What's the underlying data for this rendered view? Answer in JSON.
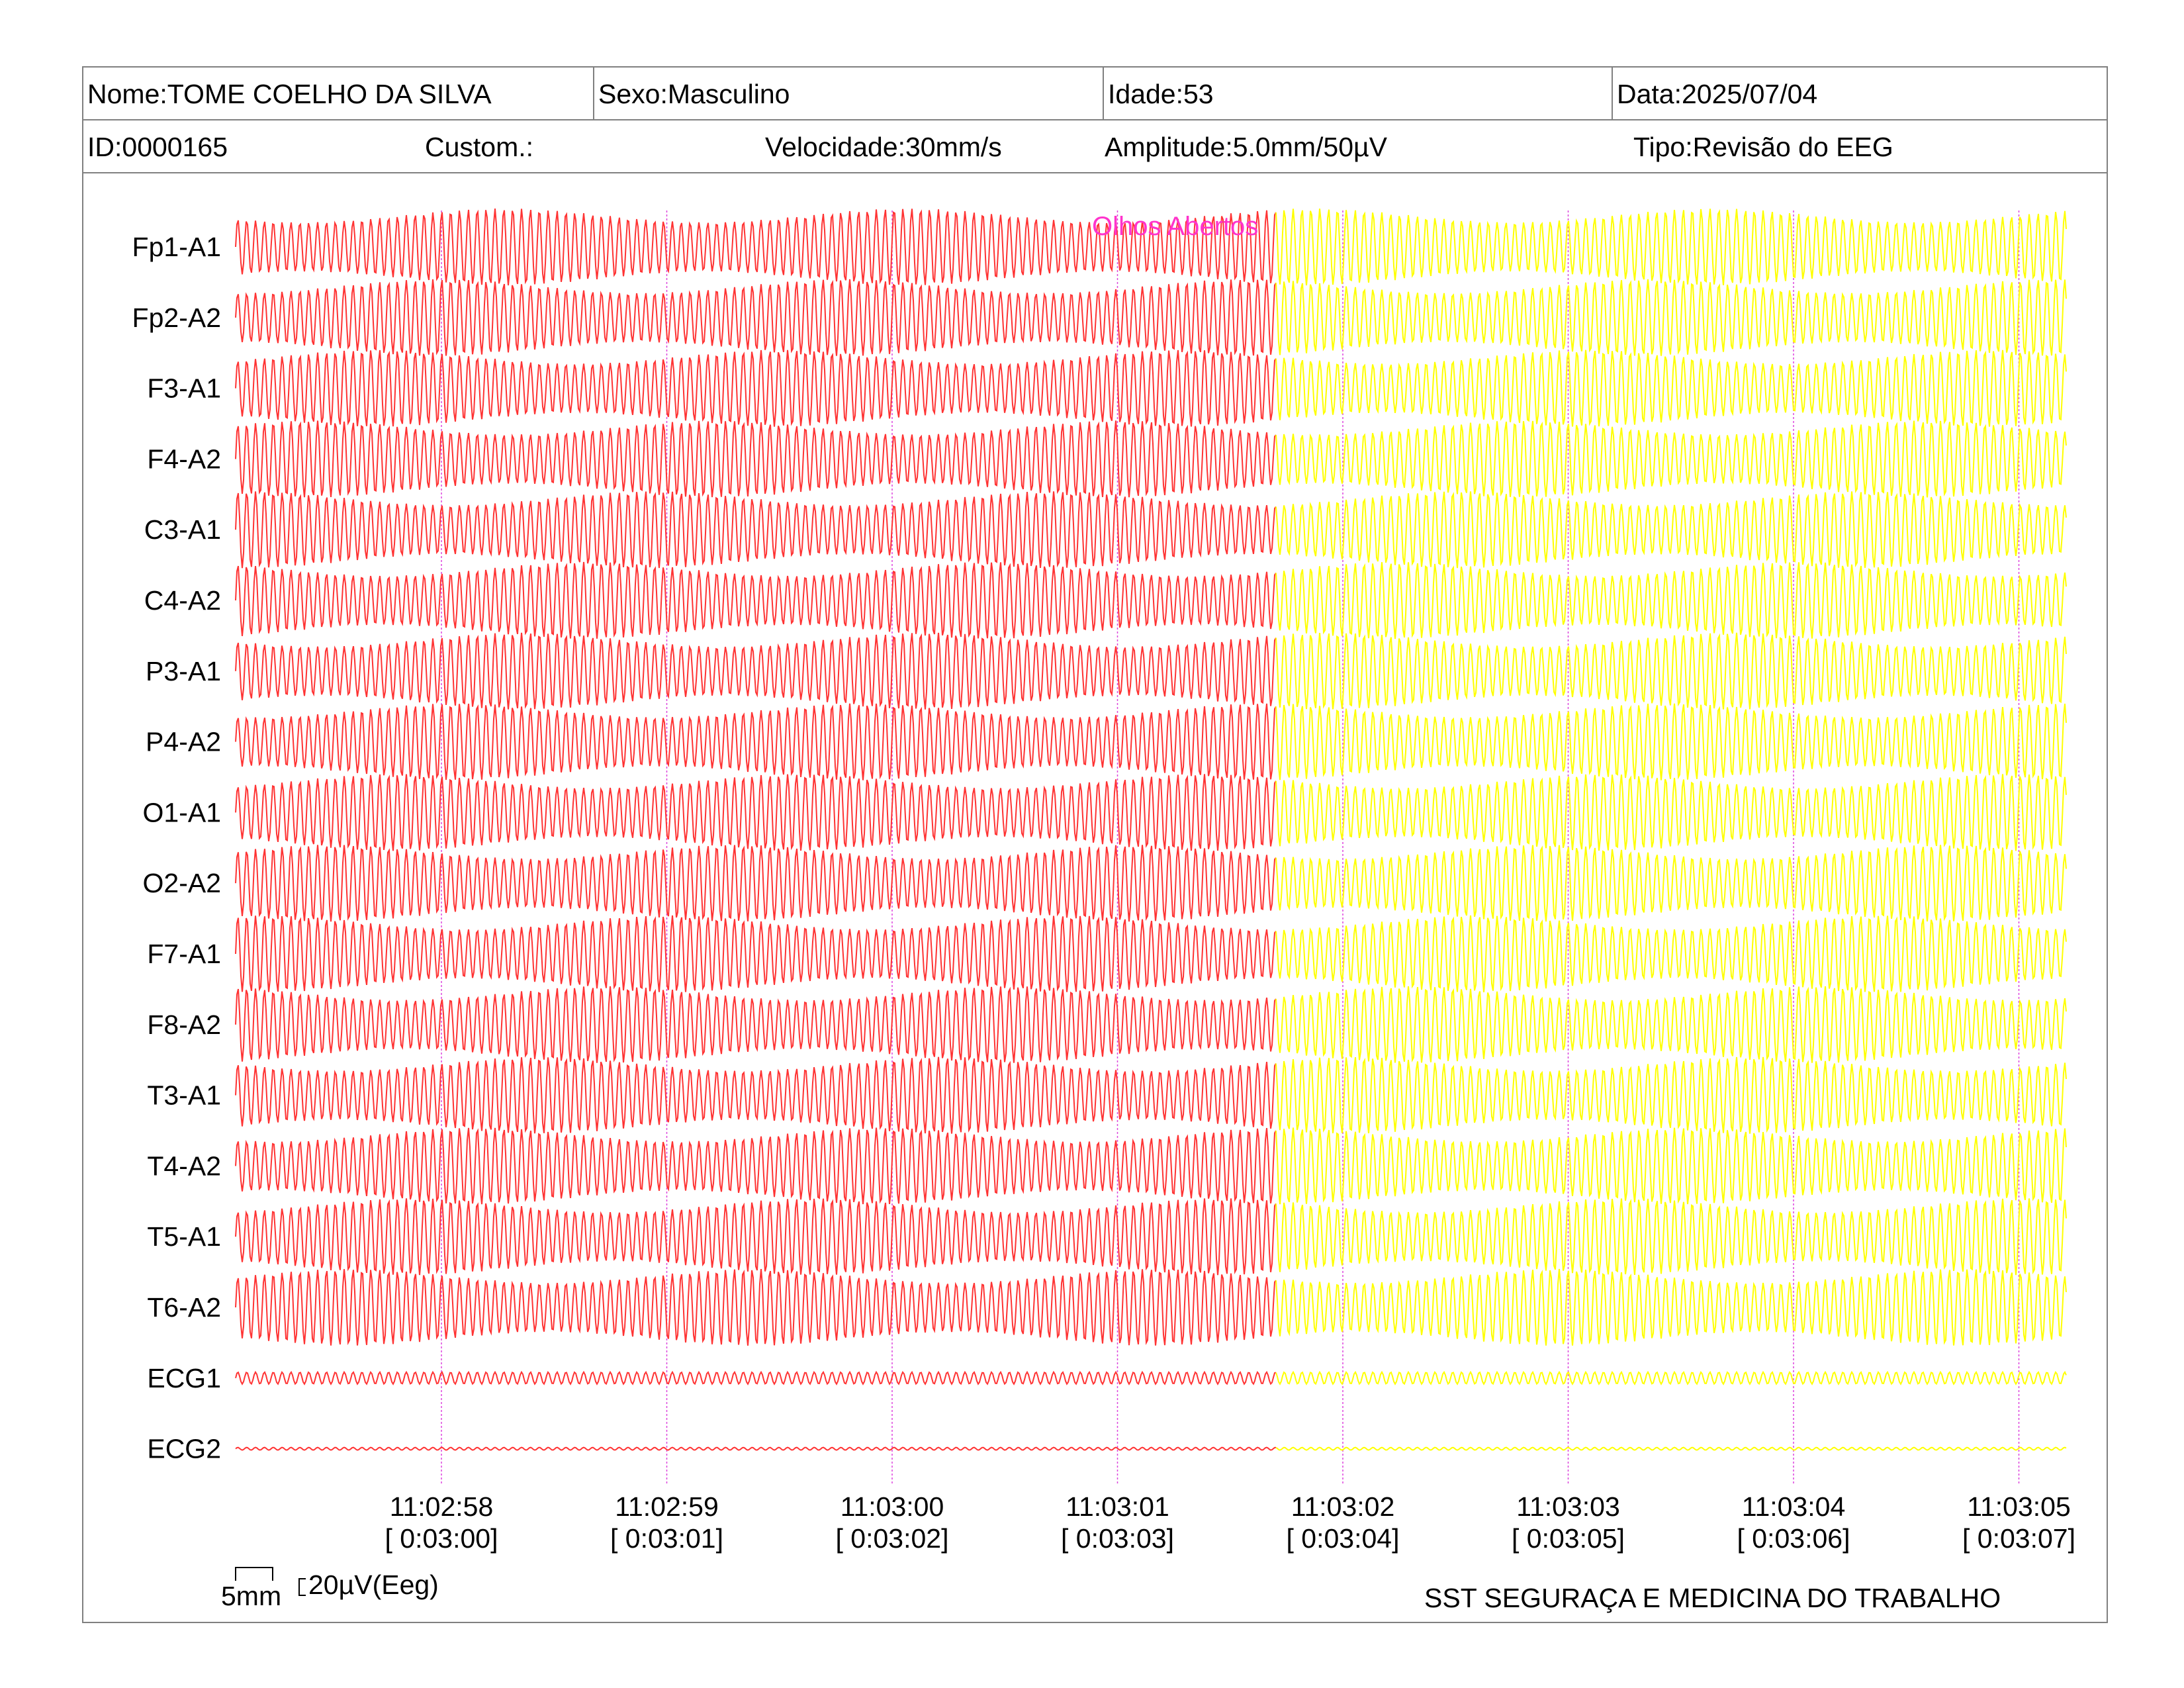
{
  "header": {
    "name": "Nome:TOME COELHO DA SILVA",
    "sex": "Sexo:Masculino",
    "age": "Idade:53",
    "date": "Data:2025/07/04",
    "id": "ID:0000165",
    "custom": "Custom.:",
    "speed": "Velocidade:30mm/s",
    "amplitude": "Amplitude:5.0mm/50µV",
    "type": "Tipo:Revisão do EEG"
  },
  "scale": {
    "time_label": "5mm",
    "amp_label": "20µV(Eeg)"
  },
  "footer": {
    "company": "SST SEGURAÇA E MEDICINA DO TRABALHO"
  },
  "colors": {
    "segment1": "#ff3333",
    "segment2": "#ffff00",
    "marker": "#dd44dd",
    "annotation": "#ff33cc",
    "border": "#808080"
  },
  "chart_data": {
    "type": "line",
    "title": "",
    "xlabel": "",
    "ylabel": "",
    "channels": [
      "Fp1-A1",
      "Fp2-A2",
      "F3-A1",
      "F4-A2",
      "C3-A1",
      "C4-A2",
      "P3-A1",
      "P4-A2",
      "O1-A1",
      "O2-A2",
      "F7-A1",
      "F8-A2",
      "T3-A1",
      "T4-A2",
      "T5-A1",
      "T6-A2",
      "ECG1",
      "ECG2"
    ],
    "time_ticks": [
      {
        "clock": "11:02:58",
        "elapsed": "[ 0:03:00]"
      },
      {
        "clock": "11:02:59",
        "elapsed": "[ 0:03:01]"
      },
      {
        "clock": "11:03:00",
        "elapsed": "[ 0:03:02]"
      },
      {
        "clock": "11:03:01",
        "elapsed": "[ 0:03:03]"
      },
      {
        "clock": "11:03:02",
        "elapsed": "[ 0:03:04]"
      },
      {
        "clock": "11:03:03",
        "elapsed": "[ 0:03:05]"
      },
      {
        "clock": "11:03:04",
        "elapsed": "[ 0:03:06]"
      },
      {
        "clock": "11:03:05",
        "elapsed": "[ 0:03:07]"
      }
    ],
    "annotation": {
      "text": "Olhos Abertos"
    },
    "segments": [
      {
        "color": "#ff3333"
      },
      {
        "color": "#ffff00"
      }
    ],
    "grid": false,
    "legend": "none"
  }
}
